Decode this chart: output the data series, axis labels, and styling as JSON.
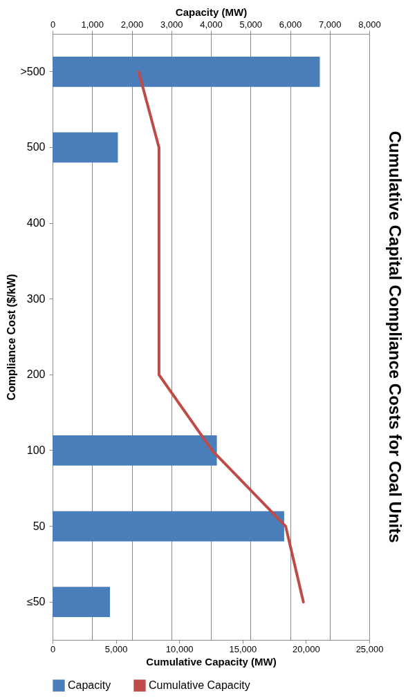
{
  "chart_data": {
    "type": "bar",
    "orientation": "horizontal",
    "title": "Cumulative Capital Compliance Costs for Coal Units",
    "ylabel": "Compliance Cost ($/kW)",
    "x2label": "Capacity (MW)",
    "xlabel": "Cumulative Capacity (MW)",
    "categories": [
      ">500",
      "500",
      "400",
      "300",
      "200",
      "100",
      "50",
      "≤50"
    ],
    "series": [
      {
        "name": "Capacity",
        "axis": "x2",
        "color": "#4a7ebb",
        "values": [
          6750,
          1650,
          null,
          null,
          null,
          4150,
          5850,
          1450
        ]
      },
      {
        "name": "Cumulative Capacity",
        "type": "line",
        "color": "#be4b48",
        "values": [
          6800,
          8400,
          8400,
          8400,
          8400,
          12600,
          18400,
          19800
        ]
      }
    ],
    "x2lim": [
      0,
      8000
    ],
    "x2ticks": [
      0,
      {
        "value": 1000,
        "label": "1,000"
      },
      {
        "value": 2000,
        "label": "2,000"
      },
      {
        "value": 3000,
        "label": "3,000"
      },
      {
        "value": 4000,
        "label": "4,000"
      },
      {
        "value": 5000,
        "label": "5,000"
      },
      {
        "value": 6000,
        "label": "6,000"
      },
      {
        "value": 7000,
        "label": "7,000"
      },
      {
        "value": 8000,
        "label": "8,000"
      }
    ],
    "xlim": [
      0,
      25000
    ],
    "xticks": [
      0,
      {
        "value": 5000,
        "label": "5,000"
      },
      {
        "value": 10000,
        "label": "10,000"
      },
      {
        "value": 15000,
        "label": "15,000"
      },
      {
        "value": 20000,
        "label": "20,000"
      },
      {
        "value": 25000,
        "label": "25,000"
      }
    ],
    "grid": "x2",
    "legend": "bottom"
  }
}
